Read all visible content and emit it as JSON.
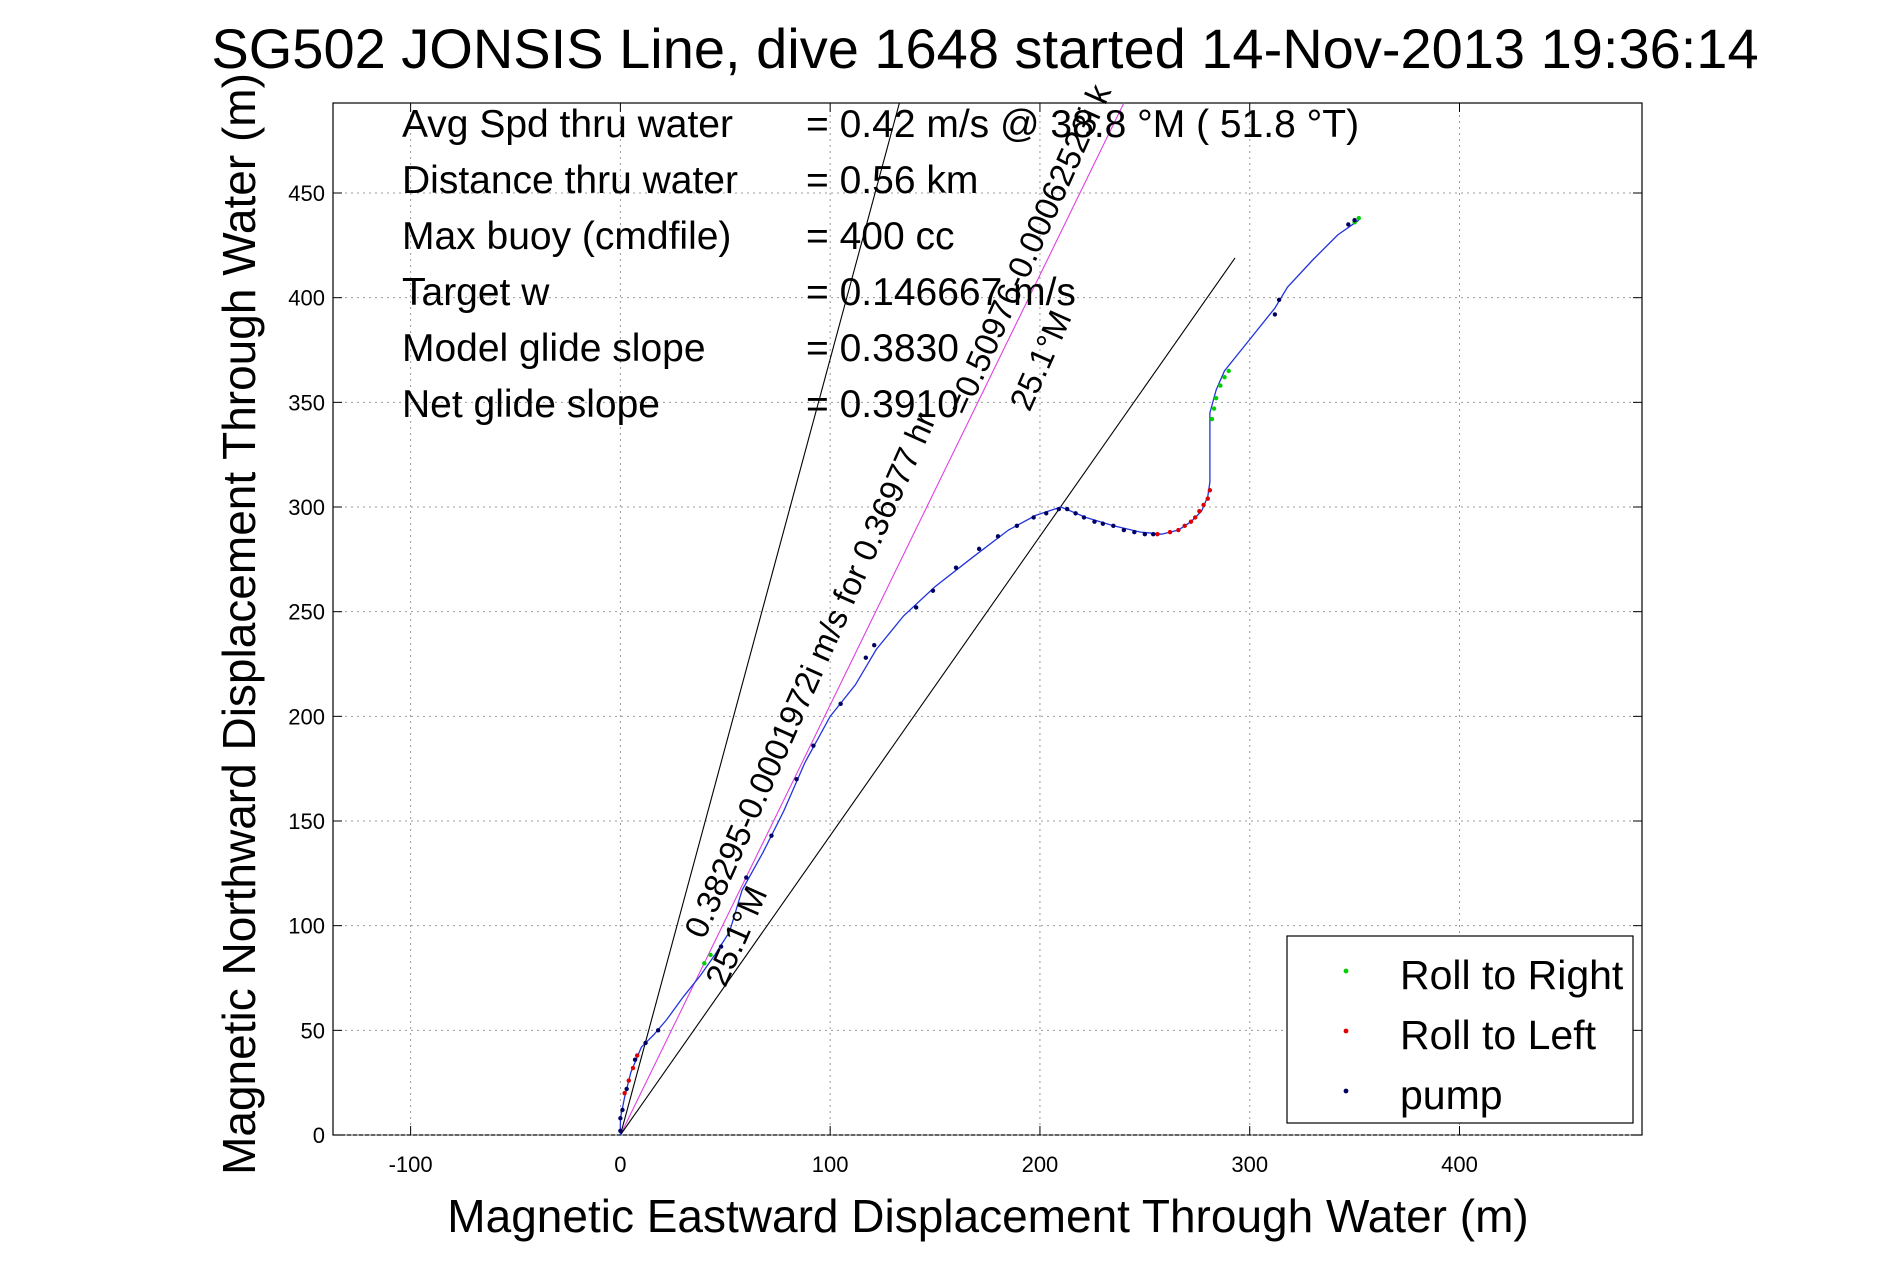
{
  "chart_data": {
    "type": "scatter",
    "title": "SG502 JONSIS Line, dive 1648 started 14-Nov-2013 19:36:14",
    "xlabel": "Magnetic Eastward Displacement Through Water (m)",
    "ylabel": "Magnetic Northward Displacement Through Water (m)",
    "xlim": [
      -137,
      487
    ],
    "ylim": [
      0,
      493
    ],
    "x_ticks": [
      -100,
      0,
      100,
      200,
      300,
      400
    ],
    "y_ticks": [
      0,
      50,
      100,
      150,
      200,
      250,
      300,
      350,
      400,
      450
    ],
    "grid": true,
    "legend_position": "bottom-right",
    "info": [
      {
        "label": "Avg Spd thru water",
        "value": "=  0.42 m/s @  38.8 °M ( 51.8 °T)"
      },
      {
        "label": "Distance thru water",
        "value": "=  0.56 km"
      },
      {
        "label": "Max buoy (cmdfile)",
        "value": "= 400 cc"
      },
      {
        "label": "Target w",
        "value": "= 0.146667 m/s"
      },
      {
        "label": "Model glide slope",
        "value": "= 0.3830"
      },
      {
        "label": "Net glide slope",
        "value": "= 0.3910"
      }
    ],
    "legend": [
      {
        "name": "Roll to Right",
        "color": "#00d000"
      },
      {
        "name": "Roll to Left",
        "color": "#e00000"
      },
      {
        "name": "pump",
        "color": "#000060"
      }
    ],
    "annotations": [
      {
        "text": "0.38295-0.0001972i m/s for 0.36977 hr",
        "anchor": [
          40,
          93
        ],
        "angle_deg": -66
      },
      {
        "text": "25.1°M",
        "anchor": [
          50,
          70
        ],
        "angle_deg": -66
      },
      {
        "text": "=0.50976-0.00062523i k",
        "anchor": [
          165,
          343
        ],
        "angle_deg": -66
      },
      {
        "text": "25.1°M",
        "anchor": [
          195,
          345
        ],
        "angle_deg": -66
      }
    ],
    "reference_lines": [
      {
        "name": "steep-heading-line",
        "x": [
          0,
          133
        ],
        "y": [
          0,
          493
        ]
      },
      {
        "name": "pink-heading-line",
        "x": [
          0,
          240
        ],
        "y": [
          0,
          493
        ]
      },
      {
        "name": "shallow-heading-line",
        "x": [
          0,
          293
        ],
        "y": [
          0,
          419
        ]
      }
    ],
    "track_color": "#2233dd",
    "track": [
      [
        0,
        0
      ],
      [
        0,
        8
      ],
      [
        2,
        18
      ],
      [
        5,
        30
      ],
      [
        10,
        42
      ],
      [
        16,
        48
      ],
      [
        22,
        55
      ],
      [
        30,
        66
      ],
      [
        38,
        76
      ],
      [
        45,
        86
      ],
      [
        52,
        97
      ],
      [
        58,
        117
      ],
      [
        68,
        135
      ],
      [
        78,
        155
      ],
      [
        88,
        178
      ],
      [
        100,
        200
      ],
      [
        112,
        215
      ],
      [
        122,
        232
      ],
      [
        135,
        248
      ],
      [
        150,
        262
      ],
      [
        168,
        276
      ],
      [
        185,
        289
      ],
      [
        198,
        296
      ],
      [
        210,
        300
      ],
      [
        222,
        295
      ],
      [
        235,
        291
      ],
      [
        248,
        288
      ],
      [
        258,
        287
      ],
      [
        266,
        289
      ],
      [
        272,
        293
      ],
      [
        277,
        298
      ],
      [
        280,
        305
      ],
      [
        281,
        312
      ],
      [
        281,
        330
      ],
      [
        281,
        345
      ],
      [
        284,
        356
      ],
      [
        288,
        365
      ],
      [
        300,
        380
      ],
      [
        312,
        395
      ],
      [
        318,
        405
      ],
      [
        330,
        418
      ],
      [
        342,
        430
      ],
      [
        352,
        437
      ]
    ],
    "points": {
      "roll_right": [
        [
          40,
          82
        ],
        [
          43,
          86
        ],
        [
          282,
          342
        ],
        [
          283,
          347
        ],
        [
          284,
          352
        ],
        [
          286,
          358
        ],
        [
          288,
          362
        ],
        [
          290,
          365
        ],
        [
          350,
          436
        ],
        [
          352,
          438
        ]
      ],
      "roll_left": [
        [
          2,
          20
        ],
        [
          4,
          26
        ],
        [
          6,
          32
        ],
        [
          8,
          38
        ],
        [
          256,
          287
        ],
        [
          262,
          288
        ],
        [
          266,
          289
        ],
        [
          269,
          291
        ],
        [
          272,
          293
        ],
        [
          274,
          295
        ],
        [
          276,
          298
        ],
        [
          278,
          301
        ],
        [
          280,
          304
        ],
        [
          281,
          308
        ]
      ],
      "pump": [
        [
          0,
          2
        ],
        [
          0,
          8
        ],
        [
          1,
          12
        ],
        [
          3,
          22
        ],
        [
          7,
          36
        ],
        [
          12,
          44
        ],
        [
          18,
          50
        ],
        [
          48,
          90
        ],
        [
          60,
          123
        ],
        [
          72,
          143
        ],
        [
          84,
          170
        ],
        [
          92,
          186
        ],
        [
          105,
          206
        ],
        [
          117,
          228
        ],
        [
          121,
          234
        ],
        [
          141,
          252
        ],
        [
          149,
          260
        ],
        [
          160,
          271
        ],
        [
          171,
          280
        ],
        [
          180,
          286
        ],
        [
          189,
          291
        ],
        [
          197,
          295
        ],
        [
          203,
          297
        ],
        [
          209,
          299
        ],
        [
          213,
          299
        ],
        [
          217,
          297
        ],
        [
          221,
          295
        ],
        [
          226,
          293
        ],
        [
          230,
          292
        ],
        [
          235,
          291
        ],
        [
          240,
          289
        ],
        [
          245,
          288
        ],
        [
          250,
          287
        ],
        [
          254,
          287
        ],
        [
          312,
          392
        ],
        [
          314,
          399
        ],
        [
          347,
          435
        ],
        [
          350,
          437
        ]
      ]
    }
  }
}
